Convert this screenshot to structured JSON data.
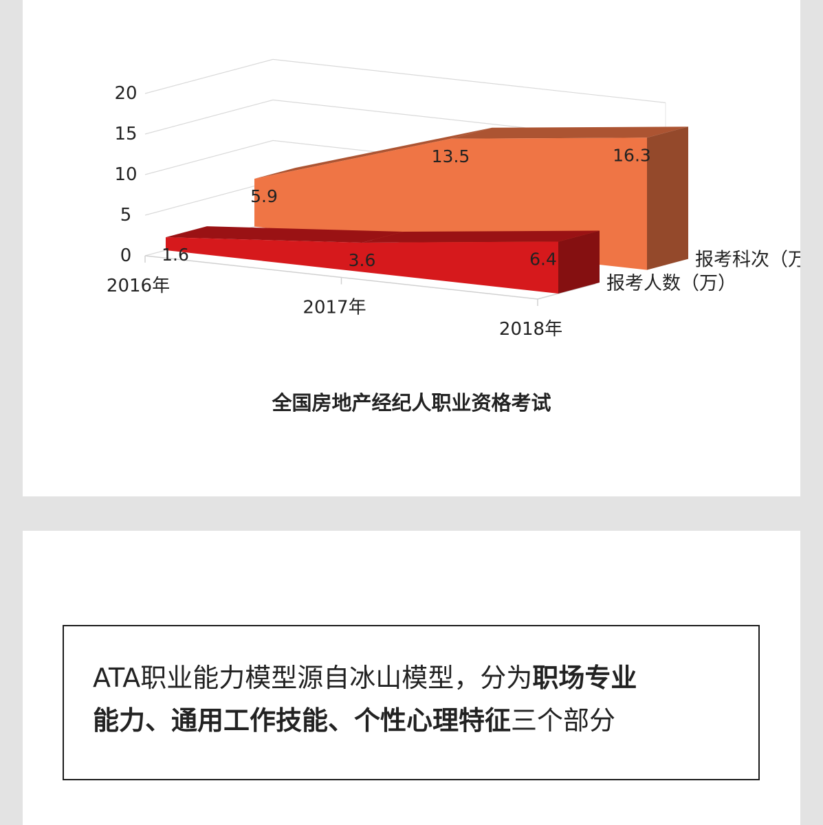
{
  "chart_data": {
    "type": "area",
    "title": "全国房地产经纪人职业资格考试",
    "categories": [
      "2016年",
      "2017年",
      "2018年"
    ],
    "ylim": [
      0,
      20
    ],
    "yticks": [
      "0",
      "5",
      "10",
      "15",
      "20"
    ],
    "grid": true,
    "legend_position": "right",
    "series": [
      {
        "name": "报考人数（万）",
        "values": [
          1.6,
          3.6,
          6.4
        ],
        "value_labels": [
          "1.6",
          "3.6",
          "6.4"
        ],
        "color": "#d6191c"
      },
      {
        "name": "报考科次（万）",
        "values": [
          5.9,
          13.5,
          16.3
        ],
        "value_labels": [
          "5.9",
          "13.5",
          "16.3"
        ],
        "color": "#ef7545"
      }
    ]
  },
  "note": {
    "line1_prefix": "ATA职业能力模型源自冰山模型，分为",
    "line1_bold": "职场专业",
    "line2_bold": "能力、通用工作技能、个性心理特征",
    "line2_suffix": "三个部分"
  }
}
